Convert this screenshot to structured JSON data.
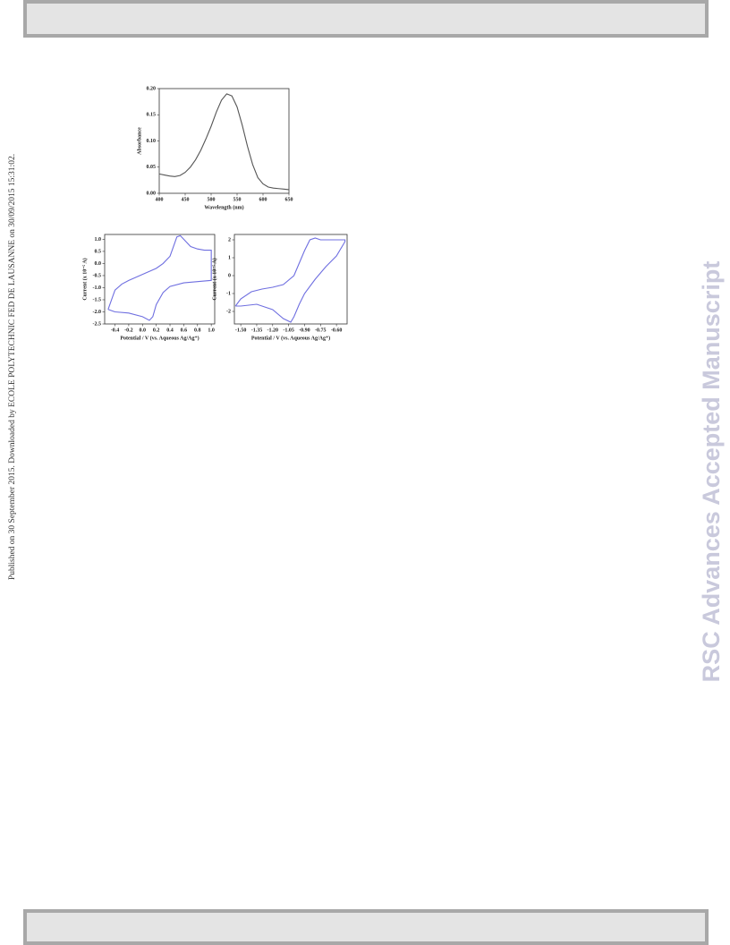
{
  "side_note": "Published on 30 September 2015. Downloaded by ECOLE POLYTECHNIC FED DE LAUSANNE on 30/09/2015 15:31:02.",
  "watermark": "RSC Advances Accepted Manuscript",
  "chart_data": [
    {
      "type": "line",
      "xlabel": "Wavelength (nm)",
      "ylabel": "Absorbance",
      "x": [
        400,
        410,
        420,
        430,
        440,
        450,
        460,
        470,
        480,
        490,
        500,
        510,
        520,
        530,
        540,
        550,
        560,
        570,
        580,
        590,
        600,
        610,
        620,
        630,
        640,
        650
      ],
      "series": [
        {
          "color": "#555555",
          "values": [
            0.037,
            0.035,
            0.033,
            0.032,
            0.034,
            0.04,
            0.05,
            0.064,
            0.082,
            0.104,
            0.128,
            0.155,
            0.178,
            0.19,
            0.186,
            0.165,
            0.13,
            0.09,
            0.055,
            0.03,
            0.018,
            0.012,
            0.01,
            0.009,
            0.008,
            0.007
          ]
        }
      ],
      "xlim": [
        400,
        650
      ],
      "xticks": [
        400,
        450,
        500,
        550,
        600,
        650
      ],
      "ylim": [
        0,
        0.2
      ],
      "yticks": [
        {
          "value": 0,
          "label": "0.00"
        },
        0.05,
        {
          "value": 0.1,
          "label": "0.10"
        },
        0.15,
        {
          "value": 0.2,
          "label": "0.20"
        }
      ]
    },
    {
      "type": "line",
      "xlabel": "Potential / V (vs. Aqueous Ag/Ag⁺)",
      "ylabel": "Current (x 10⁻⁵ A)",
      "x": [
        -0.5,
        -0.4,
        -0.3,
        -0.2,
        0.0,
        0.2,
        0.3,
        0.4,
        0.45,
        0.5,
        0.55,
        0.6,
        0.7,
        0.8,
        0.9,
        1.0,
        1.0,
        0.8,
        0.6,
        0.4,
        0.3,
        0.2,
        0.15,
        0.1,
        0.0,
        -0.2,
        -0.4,
        -0.5
      ],
      "series": [
        {
          "color": "#6f6fe0",
          "values": [
            -1.9,
            -1.1,
            -0.85,
            -0.7,
            -0.45,
            -0.2,
            0.0,
            0.3,
            0.7,
            1.1,
            1.15,
            1.0,
            0.7,
            0.6,
            0.55,
            0.55,
            -0.7,
            -0.75,
            -0.8,
            -0.95,
            -1.2,
            -1.7,
            -2.2,
            -2.35,
            -2.2,
            -2.05,
            -2.0,
            -1.9
          ]
        }
      ],
      "xlim": [
        -0.55,
        1.05
      ],
      "xticks": [
        -0.4,
        -0.2,
        {
          "value": 0,
          "label": "0.0"
        },
        0.2,
        0.4,
        0.6,
        0.8,
        {
          "value": 1,
          "label": "1.0"
        }
      ],
      "ylim": [
        -2.5,
        1.2
      ],
      "yticks": [
        {
          "value": 1,
          "label": "1.0"
        },
        0.5,
        {
          "value": 0,
          "label": "0.0"
        },
        -0.5,
        {
          "value": -1,
          "label": "-1.0"
        },
        -1.5,
        {
          "value": -2,
          "label": "-2.0"
        },
        -2.5
      ]
    },
    {
      "type": "line",
      "xlabel": "Potential / V (vs. Aqueous Ag/Ag⁺)",
      "ylabel": "Current (x 10⁻⁵ A)",
      "x": [
        -1.55,
        -1.5,
        -1.4,
        -1.3,
        -1.2,
        -1.1,
        -1.0,
        -0.95,
        -0.9,
        -0.85,
        -0.8,
        -0.75,
        -0.6,
        -0.52,
        -0.52,
        -0.6,
        -0.7,
        -0.8,
        -0.9,
        -0.95,
        -1.0,
        -1.03,
        -1.1,
        -1.2,
        -1.35,
        -1.5,
        -1.55
      ],
      "series": [
        {
          "color": "#6f6fe0",
          "values": [
            -1.7,
            -1.3,
            -0.9,
            -0.75,
            -0.65,
            -0.5,
            0.0,
            0.7,
            1.4,
            2.0,
            2.1,
            2.0,
            2.0,
            2.0,
            1.9,
            1.1,
            0.5,
            -0.2,
            -1.0,
            -1.6,
            -2.3,
            -2.6,
            -2.4,
            -1.9,
            -1.6,
            -1.7,
            -1.7
          ]
        }
      ],
      "xlim": [
        -1.56,
        -0.5
      ],
      "xticks": [
        {
          "value": -1.5,
          "label": "-1.50"
        },
        -1.35,
        {
          "value": -1.2,
          "label": "-1.20"
        },
        -1.05,
        {
          "value": -0.9,
          "label": "-0.90"
        },
        -0.75,
        {
          "value": -0.6,
          "label": "-0.60"
        }
      ],
      "ylim": [
        -2.7,
        2.3
      ],
      "yticks": [
        2,
        1,
        0,
        -1,
        -2
      ]
    }
  ]
}
